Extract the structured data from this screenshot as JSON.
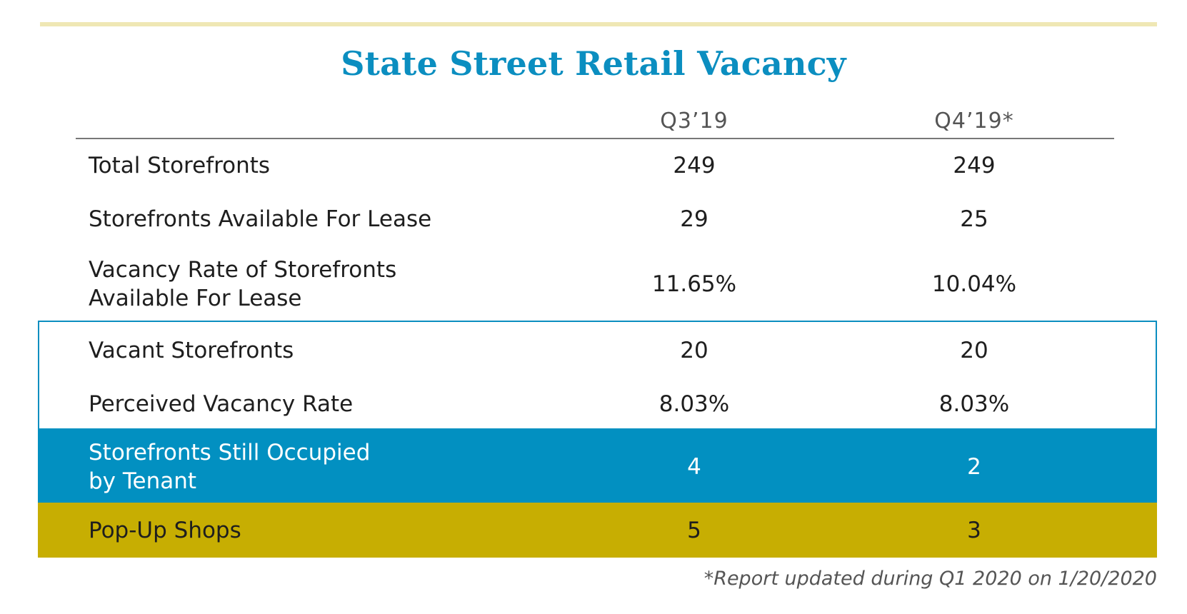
{
  "chart_data": {
    "type": "table",
    "title": "State Street Retail Vacancy",
    "columns": [
      "Q3’19",
      "Q4’19*"
    ],
    "rows": [
      {
        "label": "Total Storefronts",
        "values": [
          "249",
          "249"
        ]
      },
      {
        "label": "Storefronts Available For Lease",
        "values": [
          "29",
          "25"
        ]
      },
      {
        "label_lines": [
          "Vacancy Rate of Storefronts",
          "Available For Lease"
        ],
        "values": [
          "11.65%",
          "10.04%"
        ]
      },
      {
        "label": "Vacant Storefronts",
        "values": [
          "20",
          "20"
        ]
      },
      {
        "label": "Perceived Vacancy Rate",
        "values": [
          "8.03%",
          "8.03%"
        ]
      },
      {
        "label_lines": [
          "Storefronts Still Occupied",
          "by Tenant"
        ],
        "values": [
          "4",
          "2"
        ]
      },
      {
        "label": "Pop-Up Shops",
        "values": [
          "5",
          "3"
        ]
      }
    ],
    "footnote": "*Report updated during Q1 2020 on 1/20/2020"
  },
  "colors": {
    "title": "#0b8ec0",
    "blue_band": "#0290c1",
    "gold_band": "#c7ae02",
    "top_rule": "#efe7b4"
  }
}
